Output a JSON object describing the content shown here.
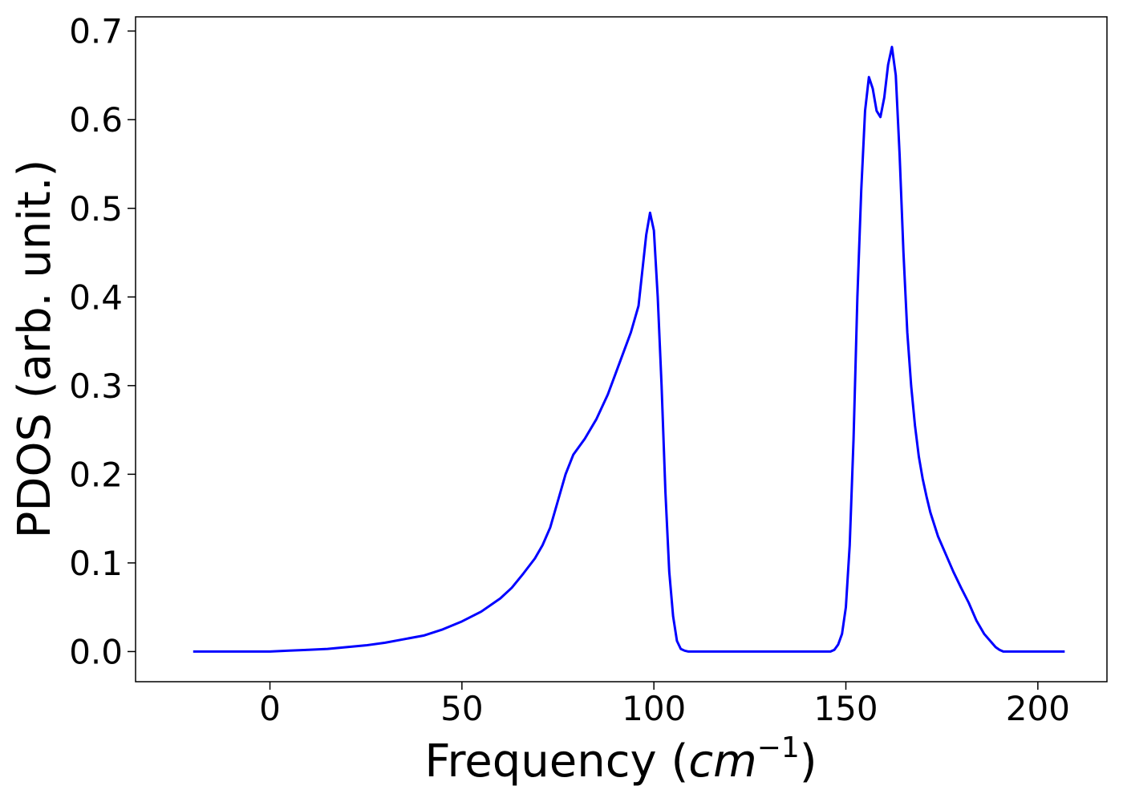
{
  "chart_data": {
    "type": "line",
    "xlabel_prefix": "Frequency (",
    "xlabel_unit": "cm",
    "xlabel_exponent": "−1",
    "xlabel_suffix": ")",
    "ylabel": "PDOS (arb. unit.)",
    "xlim": [
      -35,
      218
    ],
    "ylim": [
      -0.034,
      0.716
    ],
    "xticks": [
      0,
      50,
      100,
      150,
      200
    ],
    "xtick_labels": [
      "0",
      "50",
      "100",
      "150",
      "200"
    ],
    "yticks": [
      0.0,
      0.1,
      0.2,
      0.3,
      0.4,
      0.5,
      0.6,
      0.7
    ],
    "ytick_labels": [
      "0.0",
      "0.1",
      "0.2",
      "0.3",
      "0.4",
      "0.5",
      "0.6",
      "0.7"
    ],
    "grid": false,
    "line_color": "#0000ff",
    "series": [
      {
        "x": [
          -20,
          -10,
          0,
          5,
          10,
          15,
          20,
          25,
          30,
          35,
          40,
          45,
          50,
          55,
          60,
          63,
          66,
          69,
          71,
          73,
          75,
          77,
          79,
          82,
          85,
          88,
          91,
          94,
          96,
          97,
          98,
          99,
          100,
          101,
          102,
          103,
          104,
          105,
          106,
          107,
          108,
          109,
          110,
          112,
          120,
          130,
          140,
          146,
          147,
          148,
          149,
          150,
          151,
          152,
          153,
          154,
          155,
          156,
          157,
          158,
          159,
          160,
          161,
          162,
          163,
          164,
          165,
          166,
          167,
          168,
          169,
          170,
          171,
          172,
          174,
          176,
          178,
          180,
          182,
          184,
          186,
          188,
          189,
          190,
          191,
          192,
          193,
          195,
          200,
          207
        ],
        "y": [
          0.0,
          0.0,
          0.0,
          0.001,
          0.002,
          0.003,
          0.005,
          0.007,
          0.01,
          0.014,
          0.018,
          0.025,
          0.034,
          0.045,
          0.06,
          0.072,
          0.088,
          0.105,
          0.12,
          0.14,
          0.17,
          0.2,
          0.222,
          0.24,
          0.262,
          0.29,
          0.325,
          0.36,
          0.39,
          0.43,
          0.47,
          0.495,
          0.475,
          0.4,
          0.3,
          0.18,
          0.09,
          0.04,
          0.012,
          0.003,
          0.001,
          0.0,
          0.0,
          0.0,
          0.0,
          0.0,
          0.0,
          0.0,
          0.002,
          0.008,
          0.02,
          0.05,
          0.12,
          0.24,
          0.4,
          0.52,
          0.61,
          0.648,
          0.635,
          0.61,
          0.603,
          0.625,
          0.662,
          0.682,
          0.65,
          0.56,
          0.45,
          0.36,
          0.3,
          0.255,
          0.22,
          0.195,
          0.175,
          0.157,
          0.13,
          0.11,
          0.09,
          0.072,
          0.055,
          0.035,
          0.02,
          0.01,
          0.005,
          0.002,
          0.0,
          0.0,
          0.0,
          0.0,
          0.0,
          0.0
        ]
      }
    ]
  }
}
